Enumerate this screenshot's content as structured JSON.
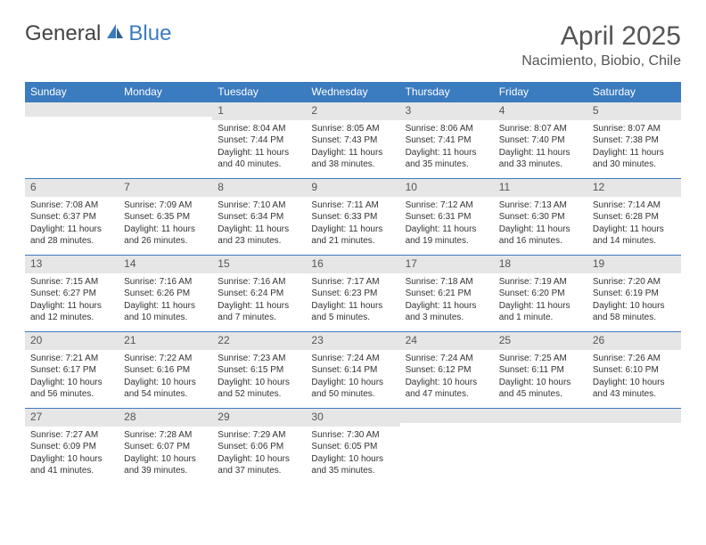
{
  "brand": {
    "part1": "General",
    "part2": "Blue"
  },
  "title": "April 2025",
  "location": "Nacimiento, Biobio, Chile",
  "colors": {
    "accent": "#3b7bbf",
    "bar_bg": "#e6e6e6",
    "text": "#555"
  },
  "dayNames": [
    "Sunday",
    "Monday",
    "Tuesday",
    "Wednesday",
    "Thursday",
    "Friday",
    "Saturday"
  ],
  "weeks": [
    [
      null,
      null,
      {
        "n": "1",
        "sr": "8:04 AM",
        "ss": "7:44 PM",
        "dl": "11 hours and 40 minutes."
      },
      {
        "n": "2",
        "sr": "8:05 AM",
        "ss": "7:43 PM",
        "dl": "11 hours and 38 minutes."
      },
      {
        "n": "3",
        "sr": "8:06 AM",
        "ss": "7:41 PM",
        "dl": "11 hours and 35 minutes."
      },
      {
        "n": "4",
        "sr": "8:07 AM",
        "ss": "7:40 PM",
        "dl": "11 hours and 33 minutes."
      },
      {
        "n": "5",
        "sr": "8:07 AM",
        "ss": "7:38 PM",
        "dl": "11 hours and 30 minutes."
      }
    ],
    [
      {
        "n": "6",
        "sr": "7:08 AM",
        "ss": "6:37 PM",
        "dl": "11 hours and 28 minutes."
      },
      {
        "n": "7",
        "sr": "7:09 AM",
        "ss": "6:35 PM",
        "dl": "11 hours and 26 minutes."
      },
      {
        "n": "8",
        "sr": "7:10 AM",
        "ss": "6:34 PM",
        "dl": "11 hours and 23 minutes."
      },
      {
        "n": "9",
        "sr": "7:11 AM",
        "ss": "6:33 PM",
        "dl": "11 hours and 21 minutes."
      },
      {
        "n": "10",
        "sr": "7:12 AM",
        "ss": "6:31 PM",
        "dl": "11 hours and 19 minutes."
      },
      {
        "n": "11",
        "sr": "7:13 AM",
        "ss": "6:30 PM",
        "dl": "11 hours and 16 minutes."
      },
      {
        "n": "12",
        "sr": "7:14 AM",
        "ss": "6:28 PM",
        "dl": "11 hours and 14 minutes."
      }
    ],
    [
      {
        "n": "13",
        "sr": "7:15 AM",
        "ss": "6:27 PM",
        "dl": "11 hours and 12 minutes."
      },
      {
        "n": "14",
        "sr": "7:16 AM",
        "ss": "6:26 PM",
        "dl": "11 hours and 10 minutes."
      },
      {
        "n": "15",
        "sr": "7:16 AM",
        "ss": "6:24 PM",
        "dl": "11 hours and 7 minutes."
      },
      {
        "n": "16",
        "sr": "7:17 AM",
        "ss": "6:23 PM",
        "dl": "11 hours and 5 minutes."
      },
      {
        "n": "17",
        "sr": "7:18 AM",
        "ss": "6:21 PM",
        "dl": "11 hours and 3 minutes."
      },
      {
        "n": "18",
        "sr": "7:19 AM",
        "ss": "6:20 PM",
        "dl": "11 hours and 1 minute."
      },
      {
        "n": "19",
        "sr": "7:20 AM",
        "ss": "6:19 PM",
        "dl": "10 hours and 58 minutes."
      }
    ],
    [
      {
        "n": "20",
        "sr": "7:21 AM",
        "ss": "6:17 PM",
        "dl": "10 hours and 56 minutes."
      },
      {
        "n": "21",
        "sr": "7:22 AM",
        "ss": "6:16 PM",
        "dl": "10 hours and 54 minutes."
      },
      {
        "n": "22",
        "sr": "7:23 AM",
        "ss": "6:15 PM",
        "dl": "10 hours and 52 minutes."
      },
      {
        "n": "23",
        "sr": "7:24 AM",
        "ss": "6:14 PM",
        "dl": "10 hours and 50 minutes."
      },
      {
        "n": "24",
        "sr": "7:24 AM",
        "ss": "6:12 PM",
        "dl": "10 hours and 47 minutes."
      },
      {
        "n": "25",
        "sr": "7:25 AM",
        "ss": "6:11 PM",
        "dl": "10 hours and 45 minutes."
      },
      {
        "n": "26",
        "sr": "7:26 AM",
        "ss": "6:10 PM",
        "dl": "10 hours and 43 minutes."
      }
    ],
    [
      {
        "n": "27",
        "sr": "7:27 AM",
        "ss": "6:09 PM",
        "dl": "10 hours and 41 minutes."
      },
      {
        "n": "28",
        "sr": "7:28 AM",
        "ss": "6:07 PM",
        "dl": "10 hours and 39 minutes."
      },
      {
        "n": "29",
        "sr": "7:29 AM",
        "ss": "6:06 PM",
        "dl": "10 hours and 37 minutes."
      },
      {
        "n": "30",
        "sr": "7:30 AM",
        "ss": "6:05 PM",
        "dl": "10 hours and 35 minutes."
      },
      null,
      null,
      null
    ]
  ],
  "labels": {
    "sunrise": "Sunrise: ",
    "sunset": "Sunset: ",
    "daylight": "Daylight: "
  }
}
